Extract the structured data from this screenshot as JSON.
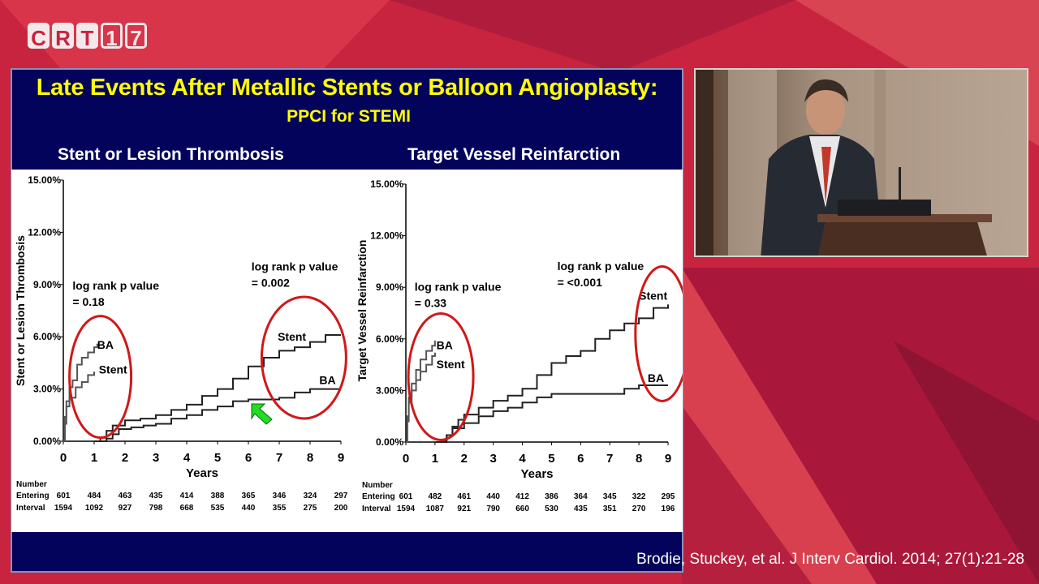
{
  "logo": {
    "letters": [
      "C",
      "R",
      "T",
      "1",
      "7"
    ]
  },
  "slide": {
    "title": "Late Events After Metallic Stents or Balloon Angioplasty:",
    "subtitle": "PPCI for STEMI",
    "citation": "Brodie, Stuckey, et al. J Interv Cardiol. 2014; 27(1):21-28"
  },
  "colors": {
    "title": "#ffff00",
    "slide_bg": "#03035c",
    "ellipse": "#d01818",
    "arrow": "#22dd22"
  },
  "chart_data": [
    {
      "type": "line",
      "title": "Stent or Lesion Thrombosis",
      "ylabel": "Stent or Lesion Thrombosis",
      "xlabel": "Years",
      "xlim": [
        0,
        9
      ],
      "ylim": [
        0,
        15
      ],
      "yticks": [
        "0.00%",
        "3.00%",
        "6.00%",
        "9.00%",
        "12.00%",
        "15.00%"
      ],
      "xticks": [
        "0",
        "1",
        "2",
        "3",
        "4",
        "5",
        "6",
        "7",
        "8",
        "9"
      ],
      "annotations": [
        {
          "text": [
            "log rank p value",
            "= 0.18"
          ],
          "at": [
            0.3,
            8.7
          ]
        },
        {
          "text": [
            "log rank p value",
            "= 0.002"
          ],
          "at": [
            6.1,
            9.8
          ]
        }
      ],
      "series": [
        {
          "name": "BA",
          "label_at": [
            1.1,
            5.3
          ],
          "end_label_at": [
            8.3,
            3.0
          ],
          "early": [
            [
              0,
              0
            ],
            [
              0.05,
              1.4
            ],
            [
              0.1,
              2.3
            ],
            [
              0.2,
              3.1
            ],
            [
              0.3,
              3.5
            ],
            [
              0.45,
              4.4
            ],
            [
              0.6,
              4.8
            ],
            [
              0.8,
              5.1
            ],
            [
              1.0,
              5.4
            ],
            [
              1.1,
              5.6
            ]
          ],
          "late": [
            [
              1.2,
              0
            ],
            [
              1.4,
              0.15
            ],
            [
              1.6,
              0.4
            ],
            [
              1.8,
              0.7
            ],
            [
              2.2,
              0.8
            ],
            [
              2.6,
              0.9
            ],
            [
              3.0,
              1.0
            ],
            [
              3.5,
              1.3
            ],
            [
              4.0,
              1.5
            ],
            [
              4.5,
              1.8
            ],
            [
              5.0,
              2.0
            ],
            [
              5.5,
              2.3
            ],
            [
              6.0,
              2.4
            ],
            [
              6.5,
              2.4
            ],
            [
              7.0,
              2.5
            ],
            [
              7.5,
              2.8
            ],
            [
              8.0,
              3.0
            ],
            [
              9.0,
              3.0
            ]
          ]
        },
        {
          "name": "Stent",
          "label_at": [
            1.15,
            3.9
          ],
          "end_label_at": [
            6.95,
            5.5
          ],
          "early": [
            [
              0,
              0
            ],
            [
              0.05,
              1.0
            ],
            [
              0.1,
              2.0
            ],
            [
              0.2,
              2.5
            ],
            [
              0.4,
              3.1
            ],
            [
              0.6,
              3.4
            ],
            [
              0.8,
              3.8
            ],
            [
              1.0,
              4.0
            ]
          ],
          "late": [
            [
              1.0,
              0
            ],
            [
              1.2,
              0.2
            ],
            [
              1.4,
              0.6
            ],
            [
              1.6,
              0.9
            ],
            [
              2.0,
              1.2
            ],
            [
              2.5,
              1.3
            ],
            [
              3.0,
              1.5
            ],
            [
              3.5,
              1.8
            ],
            [
              4.0,
              2.1
            ],
            [
              4.5,
              2.6
            ],
            [
              5.0,
              3.0
            ],
            [
              5.5,
              3.6
            ],
            [
              6.0,
              4.3
            ],
            [
              6.5,
              4.8
            ],
            [
              7.0,
              5.2
            ],
            [
              7.5,
              5.4
            ],
            [
              8.0,
              5.7
            ],
            [
              8.5,
              6.1
            ],
            [
              9.0,
              6.1
            ]
          ]
        }
      ],
      "at_risk": {
        "header": "Number",
        "rows": [
          {
            "label": "Entering",
            "values": [
              "601",
              "484",
              "463",
              "435",
              "414",
              "388",
              "365",
              "346",
              "324",
              "297"
            ]
          },
          {
            "label": "Interval",
            "values": [
              "1594",
              "1092",
              "927",
              "798",
              "668",
              "535",
              "440",
              "355",
              "275",
              "200"
            ]
          }
        ]
      }
    },
    {
      "type": "line",
      "title": "Target Vessel Reinfarction",
      "ylabel": "Target Vessel Reinfarction",
      "xlabel": "Years",
      "xlim": [
        0,
        9
      ],
      "ylim": [
        0,
        15
      ],
      "yticks": [
        "0.00%",
        "3.00%",
        "6.00%",
        "9.00%",
        "12.00%",
        "15.00%"
      ],
      "xticks": [
        "0",
        "1",
        "2",
        "3",
        "4",
        "5",
        "6",
        "7",
        "8",
        "9"
      ],
      "annotations": [
        {
          "text": [
            "log rank p value",
            "= 0.33"
          ],
          "at": [
            0.3,
            8.8
          ]
        },
        {
          "text": [
            "log rank p value",
            "= <0.001"
          ],
          "at": [
            5.2,
            10.0
          ]
        }
      ],
      "series": [
        {
          "name": "BA",
          "label_at": [
            1.05,
            5.4
          ],
          "end_label_at": [
            8.3,
            3.2
          ],
          "early": [
            [
              0,
              0
            ],
            [
              0.05,
              1.5
            ],
            [
              0.1,
              2.6
            ],
            [
              0.2,
              3.4
            ],
            [
              0.35,
              4.2
            ],
            [
              0.5,
              4.8
            ],
            [
              0.7,
              5.3
            ],
            [
              0.9,
              5.6
            ],
            [
              1.0,
              5.9
            ]
          ],
          "late": [
            [
              1.0,
              0
            ],
            [
              1.2,
              0.1
            ],
            [
              1.4,
              0.4
            ],
            [
              1.6,
              0.8
            ],
            [
              2.0,
              1.1
            ],
            [
              2.5,
              1.5
            ],
            [
              3.0,
              1.8
            ],
            [
              3.5,
              2.0
            ],
            [
              4.0,
              2.3
            ],
            [
              4.5,
              2.6
            ],
            [
              5.0,
              2.8
            ],
            [
              5.5,
              2.8
            ],
            [
              6.0,
              2.8
            ],
            [
              6.5,
              2.8
            ],
            [
              7.0,
              2.8
            ],
            [
              7.5,
              3.1
            ],
            [
              8.0,
              3.3
            ],
            [
              9.0,
              3.3
            ]
          ]
        },
        {
          "name": "Stent",
          "label_at": [
            1.05,
            4.3
          ],
          "end_label_at": [
            8.0,
            8.0
          ],
          "early": [
            [
              0,
              0
            ],
            [
              0.05,
              1.2
            ],
            [
              0.1,
              2.3
            ],
            [
              0.2,
              3.0
            ],
            [
              0.35,
              3.6
            ],
            [
              0.5,
              4.1
            ],
            [
              0.7,
              4.5
            ],
            [
              0.9,
              5.0
            ],
            [
              1.0,
              5.2
            ]
          ],
          "late": [
            [
              1.2,
              0
            ],
            [
              1.4,
              0.4
            ],
            [
              1.6,
              0.9
            ],
            [
              1.8,
              1.3
            ],
            [
              2.0,
              1.6
            ],
            [
              2.5,
              2.0
            ],
            [
              3.0,
              2.4
            ],
            [
              3.5,
              2.7
            ],
            [
              4.0,
              3.1
            ],
            [
              4.5,
              3.9
            ],
            [
              5.0,
              4.6
            ],
            [
              5.5,
              5.0
            ],
            [
              6.0,
              5.3
            ],
            [
              6.5,
              6.0
            ],
            [
              7.0,
              6.5
            ],
            [
              7.5,
              6.9
            ],
            [
              8.0,
              7.2
            ],
            [
              8.5,
              7.8
            ],
            [
              9.0,
              8.0
            ]
          ]
        }
      ],
      "at_risk": {
        "header": "Number",
        "rows": [
          {
            "label": "Entering",
            "values": [
              "601",
              "482",
              "461",
              "440",
              "412",
              "386",
              "364",
              "345",
              "322",
              "295"
            ]
          },
          {
            "label": "Interval",
            "values": [
              "1594",
              "1087",
              "921",
              "790",
              "660",
              "530",
              "435",
              "351",
              "270",
              "196"
            ]
          }
        ]
      }
    }
  ]
}
